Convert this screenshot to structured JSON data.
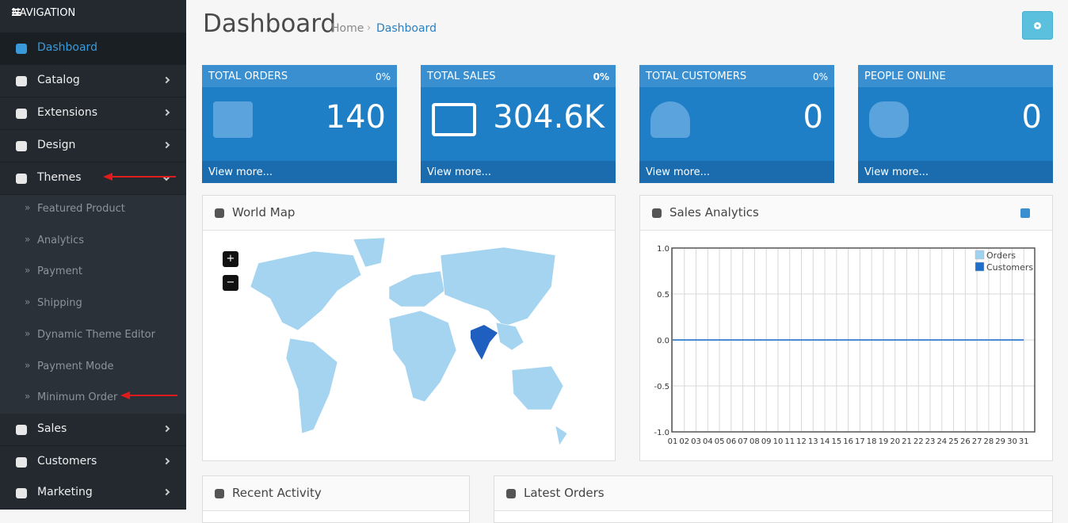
{
  "nav": {
    "heading": "NAVIGATION",
    "items": [
      "Dashboard",
      "Catalog",
      "Extensions",
      "Design",
      "Themes"
    ],
    "theme_items": [
      "Featured Product",
      "Analytics",
      "Payment",
      "Shipping",
      "Dynamic Theme Editor",
      "Payment Mode",
      "Minimum Order"
    ],
    "items_after": [
      "Sales",
      "Customers",
      "Marketing"
    ]
  },
  "header": {
    "title": "Dashboard",
    "breadcrumb": [
      "Home",
      "Dashboard"
    ]
  },
  "tiles": [
    {
      "title": "TOTAL ORDERS",
      "change": "0%",
      "value": "140",
      "link": "View more..."
    },
    {
      "title": "TOTAL SALES",
      "change": "0%",
      "value": "304.6K",
      "link": "View more..."
    },
    {
      "title": "TOTAL CUSTOMERS",
      "change": "0%",
      "value": "0",
      "link": "View more..."
    },
    {
      "title": "PEOPLE ONLINE",
      "change": "",
      "value": "0",
      "link": "View more..."
    }
  ],
  "panels": {
    "world_map": "World Map",
    "sales_analytics": "Sales Analytics",
    "recent_activity": "Recent Activity",
    "latest_orders": "Latest Orders"
  },
  "map_controls": [
    "+",
    "−"
  ],
  "chart_data": {
    "type": "line",
    "categories": [
      "01",
      "02",
      "03",
      "04",
      "05",
      "06",
      "07",
      "08",
      "09",
      "10",
      "11",
      "12",
      "13",
      "14",
      "15",
      "16",
      "17",
      "18",
      "19",
      "20",
      "21",
      "22",
      "23",
      "24",
      "25",
      "26",
      "27",
      "28",
      "29",
      "30",
      "31"
    ],
    "series": [
      {
        "name": "Orders",
        "color": "#9fd2f0",
        "values": [
          0,
          0,
          0,
          0,
          0,
          0,
          0,
          0,
          0,
          0,
          0,
          0,
          0,
          0,
          0,
          0,
          0,
          0,
          0,
          0,
          0,
          0,
          0,
          0,
          0,
          0,
          0,
          0,
          0,
          0,
          0
        ]
      },
      {
        "name": "Customers",
        "color": "#1e6fc9",
        "values": [
          0,
          0,
          0,
          0,
          0,
          0,
          0,
          0,
          0,
          0,
          0,
          0,
          0,
          0,
          0,
          0,
          0,
          0,
          0,
          0,
          0,
          0,
          0,
          0,
          0,
          0,
          0,
          0,
          0,
          0,
          0
        ]
      }
    ],
    "ylim": [
      -1,
      1
    ],
    "yticks": [
      {
        "value": 1,
        "label": "1.0"
      },
      {
        "value": 0.5,
        "label": "0.5"
      },
      {
        "value": 0,
        "label": "0.0"
      },
      {
        "value": -0.5,
        "label": "-0.5"
      },
      {
        "value": -1,
        "label": "-1.0"
      }
    ],
    "grid": true,
    "legend": "top-right"
  }
}
